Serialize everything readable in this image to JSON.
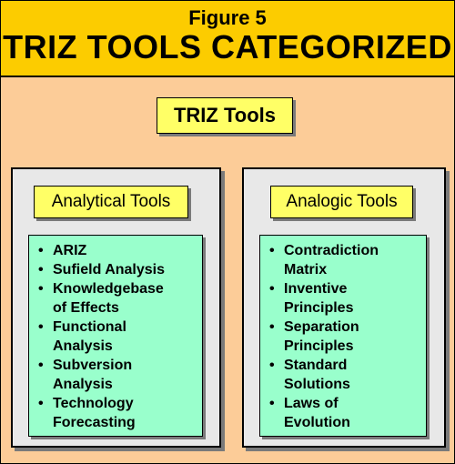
{
  "figure": {
    "label": "Figure 5",
    "title": "TRIZ TOOLS CATEGORIZED"
  },
  "root": {
    "label": "TRIZ Tools"
  },
  "categories": [
    {
      "label": "Analytical Tools",
      "items": [
        [
          "ARIZ"
        ],
        [
          "Sufield Analysis"
        ],
        [
          "Knowledgebase",
          "of Effects"
        ],
        [
          "Functional",
          "Analysis"
        ],
        [
          "Subversion",
          "Analysis"
        ],
        [
          "Technology",
          "Forecasting"
        ]
      ]
    },
    {
      "label": "Analogic Tools",
      "items": [
        [
          "Contradiction",
          "Matrix"
        ],
        [
          "Inventive",
          "Principles"
        ],
        [
          "Separation",
          "Principles"
        ],
        [
          "Standard",
          "Solutions"
        ],
        [
          "Laws of",
          "Evolution"
        ]
      ]
    }
  ],
  "colors": {
    "header_bg": "#fccc00",
    "page_bg": "#fccc98",
    "label_box": "#ffff66",
    "panel_bg": "#e8e8e8",
    "list_bg": "#99ffcc"
  }
}
